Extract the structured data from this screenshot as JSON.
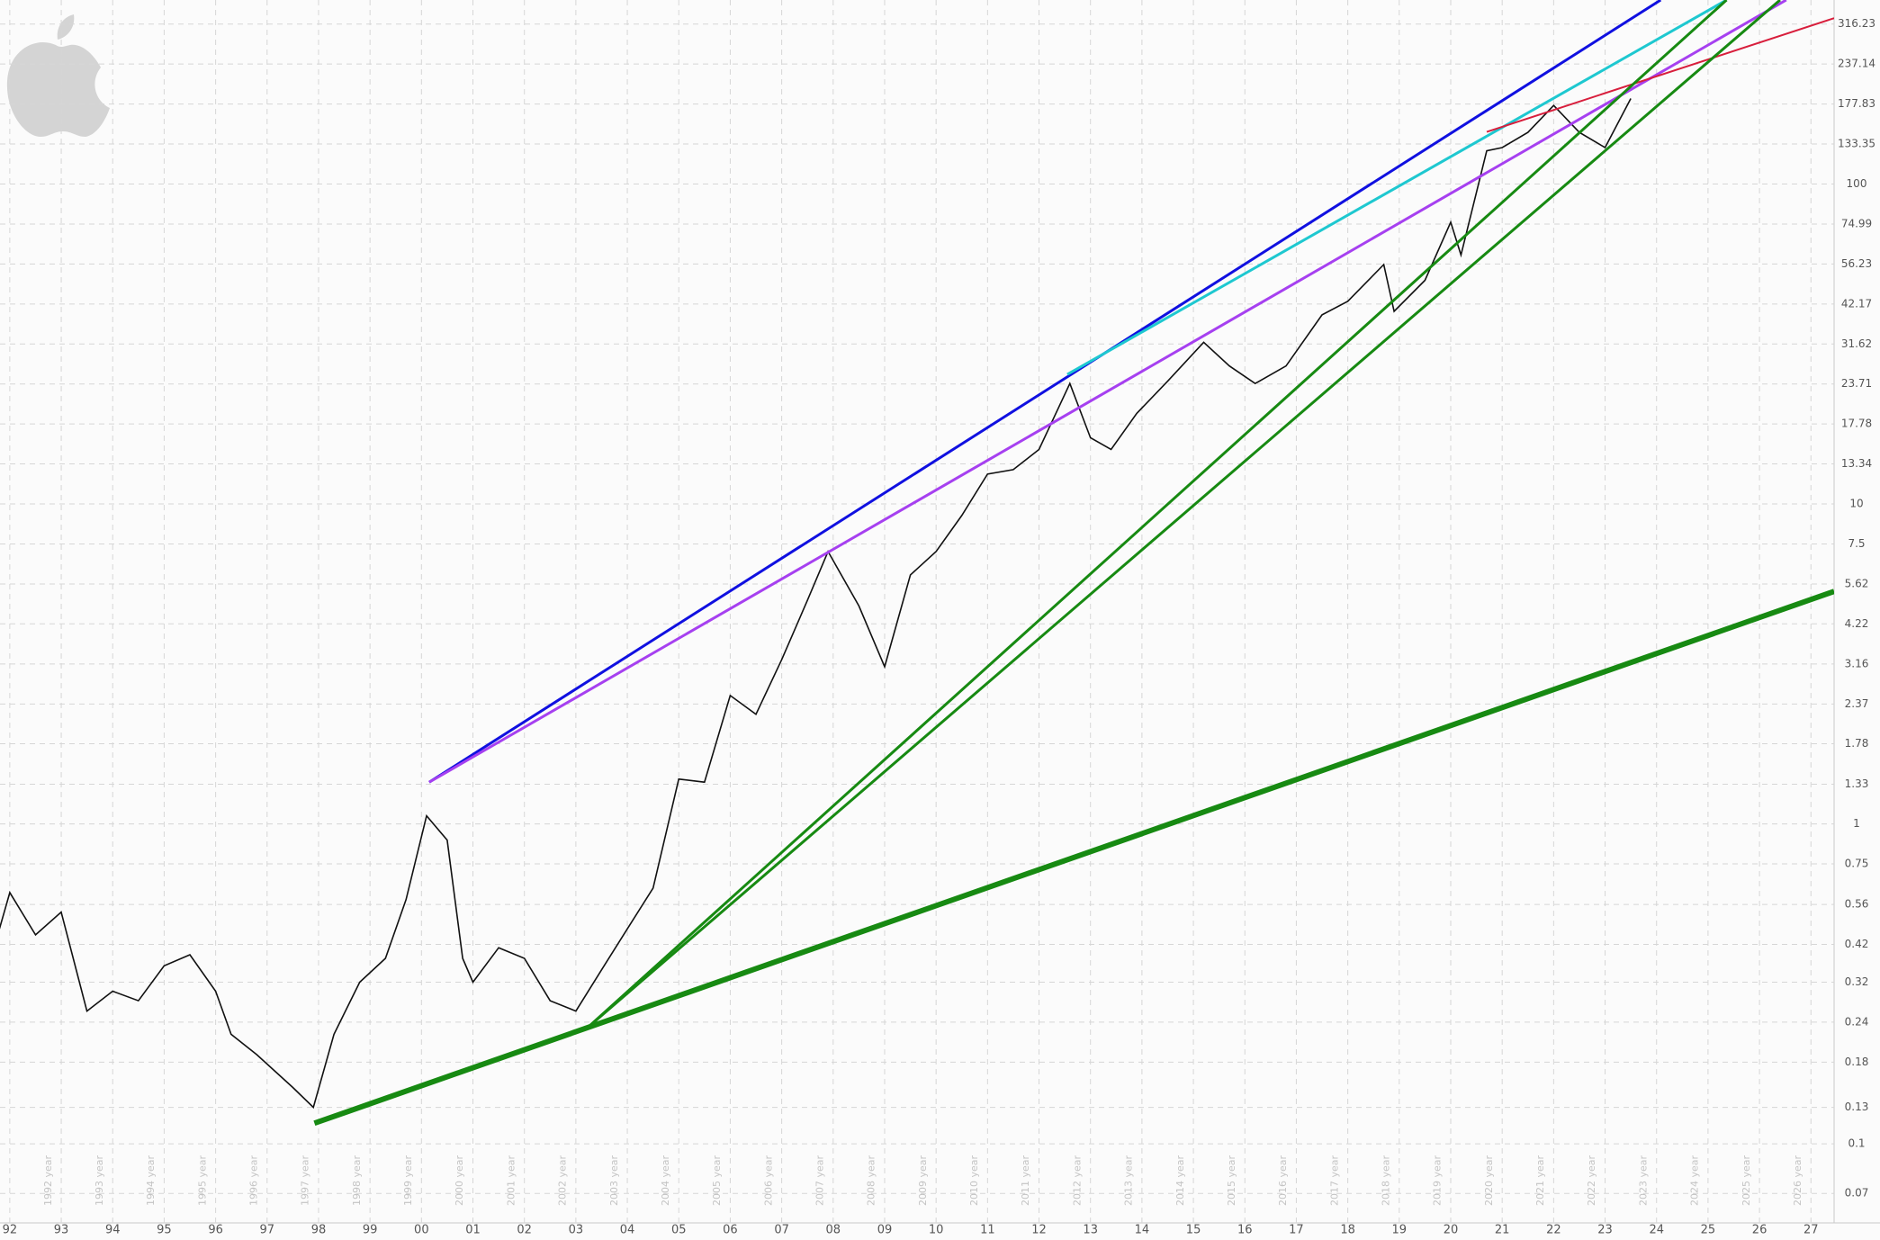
{
  "chart_data": {
    "type": "line",
    "color": "#111111",
    "log_scale": true,
    "grid": true,
    "x": [
      1991.8,
      1992.0,
      1992.5,
      1993.0,
      1993.5,
      1994.0,
      1994.5,
      1995.0,
      1995.5,
      1996.0,
      1996.3,
      1996.8,
      1997.5,
      1997.9,
      1998.3,
      1998.8,
      1999.3,
      1999.7,
      2000.1,
      2000.5,
      2000.8,
      2001.0,
      2001.5,
      2002.0,
      2002.5,
      2003.0,
      2003.5,
      2004.0,
      2004.5,
      2005.0,
      2005.5,
      2006.0,
      2006.5,
      2007.0,
      2007.5,
      2007.9,
      2008.5,
      2009.0,
      2009.5,
      2010.0,
      2010.5,
      2011.0,
      2011.5,
      2012.0,
      2012.6,
      2013.0,
      2013.4,
      2013.9,
      2014.5,
      2015.2,
      2015.7,
      2016.2,
      2016.8,
      2017.5,
      2018.0,
      2018.7,
      2018.9,
      2019.5,
      2020.0,
      2020.2,
      2020.7,
      2021.0,
      2021.5,
      2022.0,
      2022.5,
      2023.0,
      2023.5
    ],
    "values": [
      0.47,
      0.61,
      0.45,
      0.53,
      0.26,
      0.3,
      0.28,
      0.36,
      0.39,
      0.3,
      0.22,
      0.19,
      0.15,
      0.13,
      0.22,
      0.32,
      0.38,
      0.58,
      1.06,
      0.89,
      0.38,
      0.32,
      0.41,
      0.38,
      0.28,
      0.26,
      0.35,
      0.47,
      0.63,
      1.38,
      1.35,
      2.52,
      2.2,
      3.26,
      5.0,
      7.1,
      4.8,
      3.1,
      6.0,
      7.1,
      9.2,
      12.4,
      12.8,
      14.8,
      23.8,
      16.1,
      14.8,
      19.2,
      24.2,
      32,
      27,
      23.8,
      27,
      39,
      43,
      56,
      40,
      50,
      76,
      60,
      127,
      130,
      145,
      176,
      145,
      130,
      185
    ],
    "xlim": [
      1991.81,
      2027.45
    ],
    "ylim": [
      0.0566,
      376
    ],
    "yticks": [
      316.23,
      237.14,
      177.83,
      133.35,
      100,
      74.99,
      56.23,
      42.17,
      31.62,
      23.71,
      17.78,
      13.34,
      10,
      7.5,
      5.62,
      4.22,
      3.16,
      2.37,
      1.78,
      1.33,
      1,
      0.75,
      0.56,
      0.42,
      0.32,
      0.24,
      0.18,
      0.13,
      0.1,
      0.07
    ],
    "xticks": [
      {
        "value": 1992,
        "label": "92"
      },
      {
        "value": 1993,
        "label": "93"
      },
      {
        "value": 1994,
        "label": "94"
      },
      {
        "value": 1995,
        "label": "95"
      },
      {
        "value": 1996,
        "label": "96"
      },
      {
        "value": 1997,
        "label": "97"
      },
      {
        "value": 1998,
        "label": "98"
      },
      {
        "value": 1999,
        "label": "99"
      },
      {
        "value": 2000,
        "label": "00"
      },
      {
        "value": 2001,
        "label": "01"
      },
      {
        "value": 2002,
        "label": "02"
      },
      {
        "value": 2003,
        "label": "03"
      },
      {
        "value": 2004,
        "label": "04"
      },
      {
        "value": 2005,
        "label": "05"
      },
      {
        "value": 2006,
        "label": "06"
      },
      {
        "value": 2007,
        "label": "07"
      },
      {
        "value": 2008,
        "label": "08"
      },
      {
        "value": 2009,
        "label": "09"
      },
      {
        "value": 2010,
        "label": "10"
      },
      {
        "value": 2011,
        "label": "11"
      },
      {
        "value": 2012,
        "label": "12"
      },
      {
        "value": 2013,
        "label": "13"
      },
      {
        "value": 2014,
        "label": "14"
      },
      {
        "value": 2015,
        "label": "15"
      },
      {
        "value": 2016,
        "label": "16"
      },
      {
        "value": 2017,
        "label": "17"
      },
      {
        "value": 2018,
        "label": "18"
      },
      {
        "value": 2019,
        "label": "19"
      },
      {
        "value": 2020,
        "label": "20"
      },
      {
        "value": 2021,
        "label": "21"
      },
      {
        "value": 2022,
        "label": "22"
      },
      {
        "value": 2023,
        "label": "23"
      },
      {
        "value": 2024,
        "label": "24"
      },
      {
        "value": 2025,
        "label": "25"
      },
      {
        "value": 2026,
        "label": "26"
      },
      {
        "value": 2027,
        "label": "27"
      }
    ],
    "year_labels": [
      {
        "value": 1992.75,
        "label": "1992 year"
      },
      {
        "value": 1993.75,
        "label": "1993 year"
      },
      {
        "value": 1994.75,
        "label": "1994 year"
      },
      {
        "value": 1995.75,
        "label": "1995 year"
      },
      {
        "value": 1996.75,
        "label": "1996 year"
      },
      {
        "value": 1997.75,
        "label": "1997 year"
      },
      {
        "value": 1998.75,
        "label": "1998 year"
      },
      {
        "value": 1999.75,
        "label": "1999 year"
      },
      {
        "value": 2000.75,
        "label": "2000 year"
      },
      {
        "value": 2001.75,
        "label": "2001 year"
      },
      {
        "value": 2002.75,
        "label": "2002 year"
      },
      {
        "value": 2003.75,
        "label": "2003 year"
      },
      {
        "value": 2004.75,
        "label": "2004 year"
      },
      {
        "value": 2005.75,
        "label": "2005 year"
      },
      {
        "value": 2006.75,
        "label": "2006 year"
      },
      {
        "value": 2007.75,
        "label": "2007 year"
      },
      {
        "value": 2008.75,
        "label": "2008 year"
      },
      {
        "value": 2009.75,
        "label": "2009 year"
      },
      {
        "value": 2010.75,
        "label": "2010 year"
      },
      {
        "value": 2011.75,
        "label": "2011 year"
      },
      {
        "value": 2012.75,
        "label": "2012 year"
      },
      {
        "value": 2013.75,
        "label": "2013 year"
      },
      {
        "value": 2014.75,
        "label": "2014 year"
      },
      {
        "value": 2015.75,
        "label": "2015 year"
      },
      {
        "value": 2016.75,
        "label": "2016 year"
      },
      {
        "value": 2017.75,
        "label": "2017 year"
      },
      {
        "value": 2018.75,
        "label": "2018 year"
      },
      {
        "value": 2019.75,
        "label": "2019 year"
      },
      {
        "value": 2020.75,
        "label": "2020 year"
      },
      {
        "value": 2021.75,
        "label": "2021 year"
      },
      {
        "value": 2022.75,
        "label": "2022 year"
      },
      {
        "value": 2023.75,
        "label": "2023 year"
      },
      {
        "value": 2024.75,
        "label": "2024 year"
      },
      {
        "value": 2025.75,
        "label": "2025 year"
      },
      {
        "value": 2026.75,
        "label": "2026 year"
      }
    ],
    "trendlines": [
      {
        "color": "#1010e0",
        "x": [
          2000.15,
          2024.08
        ],
        "y": [
          1.35,
          376
        ]
      },
      {
        "color": "#1ec8d0",
        "x": [
          2012.55,
          2025.36
        ],
        "y": [
          25.4,
          376
        ]
      },
      {
        "color": "#a640f0",
        "x": [
          2000.15,
          2026.52
        ],
        "y": [
          1.35,
          376
        ]
      },
      {
        "color": "#d81e3c",
        "x": [
          2020.7,
          2027.45
        ],
        "y": [
          145.5,
          330
        ]
      },
      {
        "color": "#178a12",
        "x": [
          1997.92,
          2027.45
        ],
        "y": [
          0.116,
          5.33
        ]
      },
      {
        "color": "#178a12",
        "x": [
          2003.23,
          2025.36
        ],
        "y": [
          0.231,
          376
        ]
      },
      {
        "color": "#178a12",
        "x": [
          2003.23,
          2026.4
        ],
        "y": [
          0.231,
          376
        ]
      }
    ]
  }
}
